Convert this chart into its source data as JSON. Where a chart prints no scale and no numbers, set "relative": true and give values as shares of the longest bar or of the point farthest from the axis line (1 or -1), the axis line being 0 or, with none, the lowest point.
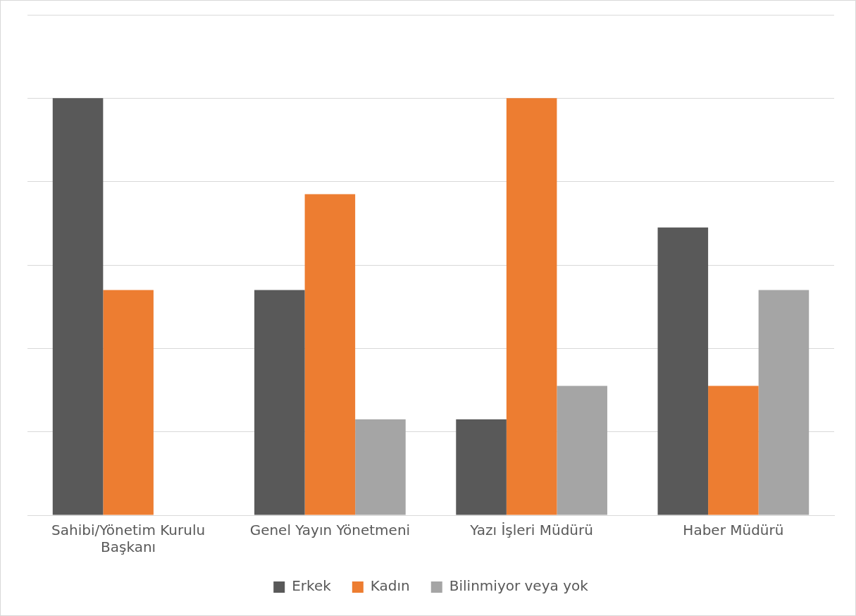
{
  "chart_data": {
    "type": "bar",
    "relative": true,
    "grid": "y",
    "legend": "bottom",
    "categories": [
      "Sahibi/Yönetim Kurulu Başkanı",
      "Genel Yayın Yönetmeni",
      "Yazı İşleri Müdürü",
      "Haber Müdürü"
    ],
    "series": [
      {
        "name": "Erkek",
        "color": "#595959",
        "values": [
          1,
          0.54,
          0.23,
          0.69
        ]
      },
      {
        "name": "Kadın",
        "color": "#ed7d31",
        "values": [
          0.54,
          0.77,
          1,
          0.31
        ]
      },
      {
        "name": "Bilinmiyor veya yok",
        "color": "#a5a5a5",
        "values": [
          0,
          0.23,
          0.31,
          0.54
        ]
      }
    ]
  }
}
